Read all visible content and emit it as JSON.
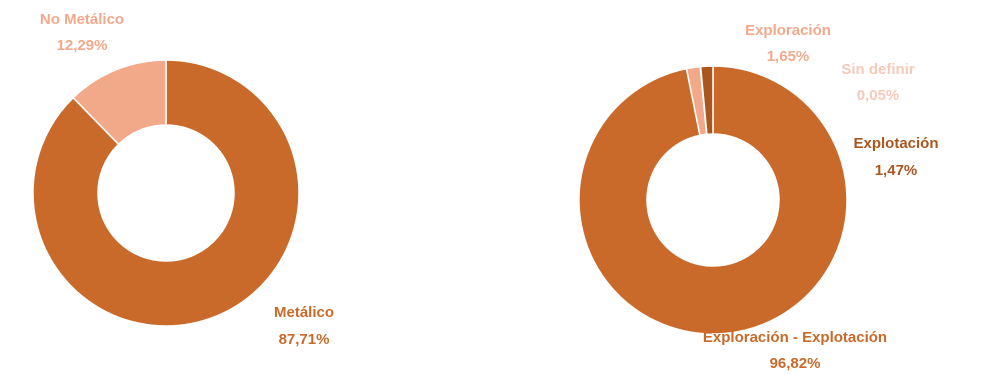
{
  "chart_data": [
    {
      "type": "pie",
      "variant": "donut",
      "title": "",
      "slices": [
        {
          "label": "Metálico",
          "value": 87.71,
          "value_text": "87,71%",
          "color": "#c96a2b"
        },
        {
          "label": "No Metálico",
          "value": 12.29,
          "value_text": "12,29%",
          "color": "#f2a98a"
        }
      ],
      "legend": "none"
    },
    {
      "type": "pie",
      "variant": "donut",
      "title": "",
      "slices": [
        {
          "label": "Exploración - Explotación",
          "value": 96.82,
          "value_text": "96,82%",
          "color": "#c96a2b"
        },
        {
          "label": "Exploración",
          "value": 1.65,
          "value_text": "1,65%",
          "color": "#f2a98a"
        },
        {
          "label": "Sin definir",
          "value": 0.05,
          "value_text": "0,05%",
          "color": "#f7c9b8"
        },
        {
          "label": "Explotación",
          "value": 1.47,
          "value_text": "1,47%",
          "color": "#a9561f"
        }
      ],
      "legend": "none"
    }
  ]
}
